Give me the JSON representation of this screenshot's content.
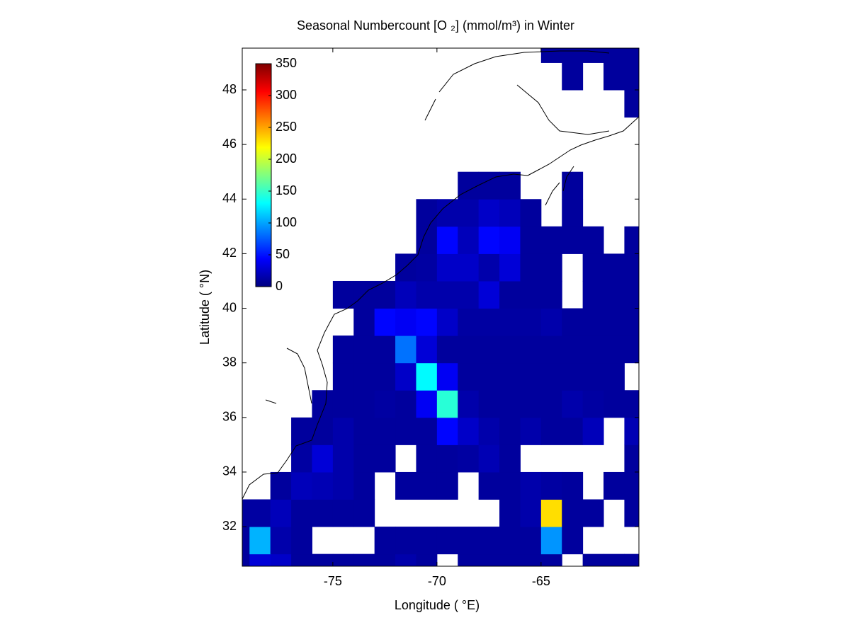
{
  "chart_data": {
    "type": "heatmap",
    "title": "Seasonal Numbercount [O ₂] (mmol/m³) in  Winter",
    "x_label": "Longitude ( °E)",
    "y_label": "Latitude ( °N)",
    "xlim": [
      -79.35,
      -60.3
    ],
    "ylim": [
      30.55,
      49.53
    ],
    "xticks": [
      -75,
      -70,
      -65
    ],
    "yticks": [
      32,
      34,
      36,
      38,
      40,
      42,
      44,
      46,
      48
    ],
    "x": [
      -79.5,
      -78.5,
      -77.5,
      -76.5,
      -75.5,
      -74.5,
      -73.5,
      -72.5,
      -71.5,
      -70.5,
      -69.5,
      -68.5,
      -67.5,
      -66.5,
      -65.5,
      -64.5,
      -63.5,
      -62.5,
      -61.5,
      -60.5
    ],
    "y": [
      30.5,
      31.5,
      32.5,
      33.5,
      34.5,
      35.5,
      36.5,
      37.5,
      38.5,
      39.5,
      40.5,
      41.5,
      42.5,
      43.5,
      44.5,
      45.5,
      46.5,
      47.5,
      48.5,
      49.5
    ],
    "z": [
      [
        10,
        30,
        25,
        10,
        10,
        10,
        10,
        10,
        15,
        10,
        null,
        10,
        10,
        10,
        10,
        10,
        null,
        10,
        10,
        10
      ],
      [
        10,
        105,
        15,
        10,
        null,
        null,
        null,
        10,
        10,
        10,
        10,
        10,
        10,
        10,
        10,
        95,
        10,
        null,
        null,
        null
      ],
      [
        10,
        12,
        20,
        10,
        10,
        10,
        10,
        null,
        null,
        null,
        null,
        null,
        null,
        10,
        15,
        230,
        10,
        10,
        null,
        10
      ],
      [
        null,
        null,
        10,
        20,
        18,
        15,
        10,
        null,
        10,
        10,
        10,
        null,
        10,
        10,
        15,
        12,
        10,
        null,
        10,
        10
      ],
      [
        null,
        null,
        null,
        12,
        30,
        15,
        10,
        10,
        null,
        10,
        10,
        12,
        18,
        10,
        null,
        null,
        null,
        null,
        null,
        10
      ],
      [
        null,
        null,
        null,
        10,
        10,
        15,
        10,
        10,
        10,
        10,
        45,
        25,
        15,
        10,
        15,
        10,
        10,
        20,
        null,
        18
      ],
      [
        null,
        null,
        null,
        null,
        10,
        10,
        10,
        12,
        10,
        40,
        145,
        15,
        10,
        10,
        10,
        10,
        15,
        12,
        10,
        10
      ],
      [
        null,
        null,
        null,
        null,
        null,
        10,
        10,
        10,
        25,
        130,
        40,
        10,
        10,
        10,
        10,
        10,
        10,
        10,
        10,
        null
      ],
      [
        null,
        null,
        null,
        null,
        null,
        10,
        10,
        10,
        83,
        30,
        10,
        10,
        10,
        10,
        10,
        10,
        10,
        10,
        10,
        10
      ],
      [
        null,
        null,
        null,
        null,
        null,
        null,
        10,
        45,
        40,
        45,
        25,
        12,
        12,
        12,
        12,
        15,
        10,
        10,
        10,
        10
      ],
      [
        null,
        null,
        null,
        null,
        null,
        10,
        10,
        10,
        20,
        15,
        15,
        15,
        30,
        10,
        10,
        10,
        null,
        10,
        10,
        10
      ],
      [
        null,
        null,
        null,
        null,
        null,
        null,
        null,
        null,
        10,
        12,
        25,
        25,
        15,
        30,
        10,
        10,
        null,
        10,
        10,
        10
      ],
      [
        null,
        null,
        null,
        null,
        null,
        null,
        null,
        null,
        null,
        10,
        45,
        20,
        45,
        40,
        10,
        10,
        10,
        10,
        null,
        10
      ],
      [
        null,
        null,
        null,
        null,
        null,
        null,
        null,
        null,
        null,
        10,
        15,
        15,
        25,
        20,
        10,
        null,
        10,
        null,
        null,
        null
      ],
      [
        null,
        null,
        null,
        null,
        null,
        null,
        null,
        null,
        null,
        null,
        null,
        10,
        10,
        10,
        null,
        null,
        10,
        null,
        null,
        null
      ],
      [
        null,
        null,
        null,
        null,
        null,
        null,
        null,
        null,
        null,
        null,
        null,
        null,
        null,
        null,
        null,
        null,
        null,
        null,
        null,
        null
      ],
      [
        null,
        null,
        null,
        null,
        null,
        null,
        null,
        null,
        null,
        null,
        null,
        null,
        null,
        null,
        null,
        null,
        null,
        null,
        null,
        null
      ],
      [
        null,
        null,
        null,
        null,
        null,
        null,
        null,
        null,
        null,
        null,
        null,
        null,
        null,
        null,
        null,
        null,
        null,
        null,
        null,
        10
      ],
      [
        null,
        null,
        null,
        null,
        null,
        null,
        null,
        null,
        null,
        null,
        null,
        null,
        null,
        null,
        null,
        null,
        10,
        null,
        10,
        10
      ],
      [
        null,
        null,
        null,
        null,
        null,
        null,
        null,
        null,
        null,
        null,
        null,
        null,
        null,
        null,
        null,
        10,
        10,
        10,
        10,
        10
      ]
    ],
    "colorbar": {
      "colormap": "jet",
      "lim": [
        0,
        350
      ],
      "ticks": [
        0,
        50,
        100,
        150,
        200,
        250,
        300,
        350
      ]
    }
  }
}
